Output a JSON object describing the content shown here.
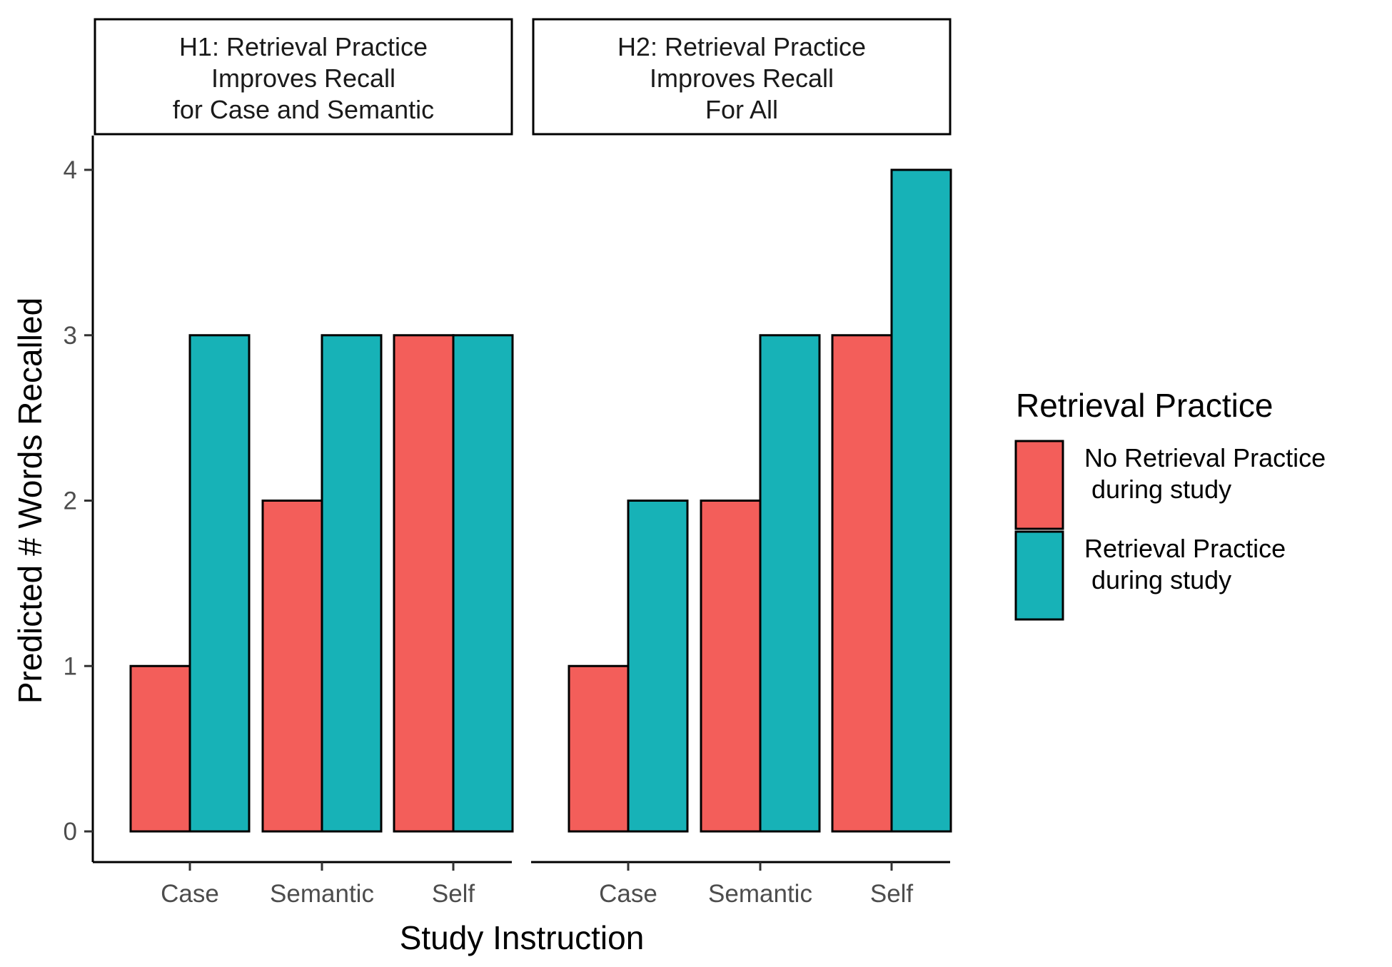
{
  "chart_data": {
    "type": "bar",
    "ylabel": "Predicted # Words Recalled",
    "xlabel": "Study Instruction",
    "ylim": [
      0,
      4
    ],
    "yticks": [
      0,
      1,
      2,
      3,
      4
    ],
    "grid": false,
    "legend": {
      "title": "Retrieval Practice",
      "placement": "right",
      "entries": [
        {
          "label_lines": [
            "No Retrieval Practice",
            " during study"
          ],
          "color": "#F35E5A"
        },
        {
          "label_lines": [
            "Retrieval Practice",
            " during study"
          ],
          "color": "#17B2B7"
        }
      ]
    },
    "panels": [
      {
        "strip_lines": [
          "H1: Retrieval Practice",
          "Improves Recall",
          "for Case and Semantic"
        ],
        "categories": [
          "Case",
          "Semantic",
          "Self"
        ],
        "series": [
          {
            "name": "No Retrieval Practice during study",
            "values": [
              1,
              2,
              3
            ]
          },
          {
            "name": "Retrieval Practice during study",
            "values": [
              3,
              3,
              3
            ]
          }
        ]
      },
      {
        "strip_lines": [
          "H2: Retrieval Practice",
          "Improves Recall",
          "For All"
        ],
        "categories": [
          "Case",
          "Semantic",
          "Self"
        ],
        "series": [
          {
            "name": "No Retrieval Practice during study",
            "values": [
              1,
              2,
              3
            ]
          },
          {
            "name": "Retrieval Practice during study",
            "values": [
              2,
              3,
              4
            ]
          }
        ]
      }
    ]
  }
}
